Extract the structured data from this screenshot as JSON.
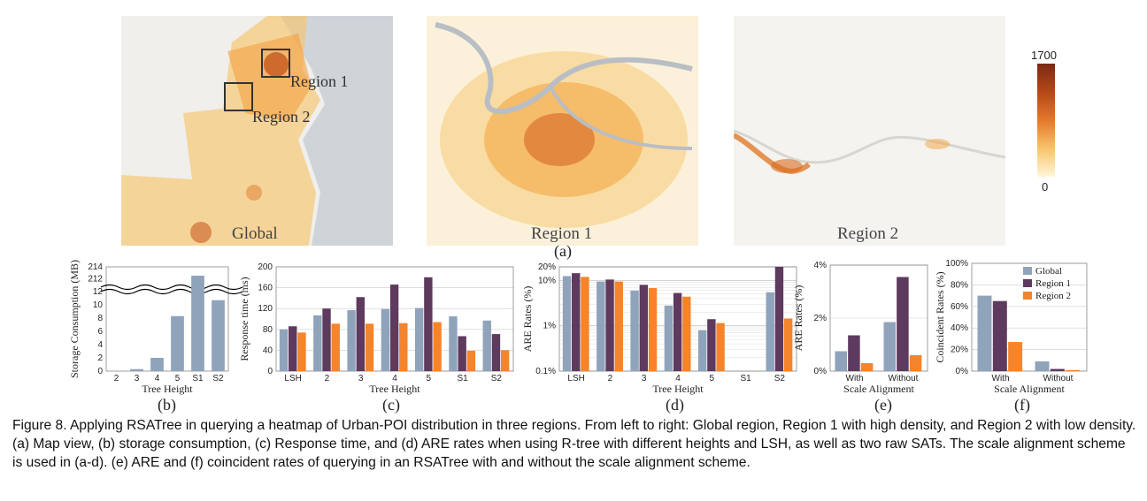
{
  "colors": {
    "global": "#8fa3bb",
    "region1": "#5d3a5e",
    "region2": "#f5842b",
    "heat_low": "#fff6d9",
    "heat_mid": "#f6a33d",
    "heat_high": "#b5471a",
    "land": "#f0efec",
    "water": "#cfd4d9"
  },
  "maps": {
    "global_label": "Global",
    "region1_label": "Region 1",
    "region2_label": "Region 2",
    "box1_label": "Region 1",
    "box2_label": "Region 2",
    "colorbar_max": "1700",
    "colorbar_min": "0",
    "panel_label": "(a)"
  },
  "panel_labels": {
    "b": "(b)",
    "c": "(c)",
    "d": "(d)",
    "e": "(e)",
    "f": "(f)"
  },
  "legend": {
    "items": [
      "Global",
      "Region 1",
      "Region 2"
    ]
  },
  "chart_data": [
    {
      "id": "b",
      "type": "bar",
      "xlabel": "Tree Height",
      "ylabel": "Storage Consumption (MB)",
      "categories": [
        "2",
        "3",
        "4",
        "5",
        "S1",
        "S2"
      ],
      "values": [
        0.05,
        0.3,
        2.0,
        8.3,
        212.5,
        10.7
      ],
      "yticks_lower": [
        "0",
        "2",
        "4",
        "6",
        "8",
        "10",
        "12"
      ],
      "yticks_upper": [
        "212",
        "214"
      ],
      "axis_break": true,
      "ylim_lower": [
        0,
        12
      ],
      "ylim_upper": [
        211,
        214
      ]
    },
    {
      "id": "c",
      "type": "bar",
      "xlabel": "Tree Height",
      "ylabel": "Response time (ms)",
      "categories": [
        "LSH",
        "2",
        "3",
        "4",
        "5",
        "S1",
        "S2"
      ],
      "yticks": [
        "0",
        "40",
        "80",
        "120",
        "160",
        "200"
      ],
      "ylim": [
        0,
        200
      ],
      "series": [
        {
          "name": "Global",
          "values": [
            80,
            107,
            117,
            119,
            121,
            105,
            97
          ]
        },
        {
          "name": "Region 1",
          "values": [
            86,
            120,
            142,
            166,
            180,
            67,
            71
          ]
        },
        {
          "name": "Region 2",
          "values": [
            74,
            91,
            91,
            92,
            94,
            39,
            40
          ]
        }
      ]
    },
    {
      "id": "d",
      "type": "bar",
      "yscale": "log",
      "xlabel": "Tree Height",
      "ylabel": "ARE Rates (%)",
      "categories": [
        "LSH",
        "2",
        "3",
        "4",
        "5",
        "S1",
        "S2"
      ],
      "yticks": [
        "0.1%",
        "1%",
        "10%",
        "20%"
      ],
      "ylim": [
        0.1,
        20
      ],
      "series": [
        {
          "name": "Global",
          "values": [
            12.5,
            9.5,
            6.0,
            2.8,
            0.8,
            0,
            5.5
          ]
        },
        {
          "name": "Region 1",
          "values": [
            14.5,
            10.5,
            8.0,
            5.3,
            1.4,
            0,
            20
          ]
        },
        {
          "name": "Region 2",
          "values": [
            12.0,
            9.5,
            6.8,
            4.4,
            1.15,
            0,
            1.45
          ]
        }
      ]
    },
    {
      "id": "e",
      "type": "bar",
      "xlabel": "Scale Alignment",
      "ylabel": "ARE Rates (%)",
      "categories": [
        "With",
        "Without"
      ],
      "yticks": [
        "0%",
        "2%",
        "4%"
      ],
      "ylim": [
        0,
        4
      ],
      "series": [
        {
          "name": "Global",
          "values": [
            0.75,
            1.85
          ]
        },
        {
          "name": "Region 1",
          "values": [
            1.35,
            3.55
          ]
        },
        {
          "name": "Region 2",
          "values": [
            0.3,
            0.6
          ]
        }
      ]
    },
    {
      "id": "f",
      "type": "bar",
      "xlabel": "Scale Alignment",
      "ylabel": "Coincident Rates (%)",
      "categories": [
        "With",
        "Without"
      ],
      "yticks": [
        "0%",
        "20%",
        "40%",
        "60%",
        "80%",
        "100%"
      ],
      "ylim": [
        0,
        100
      ],
      "series": [
        {
          "name": "Global",
          "values": [
            70,
            9
          ]
        },
        {
          "name": "Region 1",
          "values": [
            65,
            2
          ]
        },
        {
          "name": "Region 2",
          "values": [
            27,
            1
          ]
        }
      ]
    }
  ],
  "caption": "Figure 8. Applying RSATree in querying a heatmap of Urban-POI distribution in three regions. From left to right: Global region, Region 1 with high density, and Region 2 with low density. (a) Map view, (b) storage consumption, (c) Response time, and (d) ARE rates when using R-tree with different heights and LSH, as well as two raw SATs. The scale alignment scheme is used in (a-d). (e) ARE and (f) coincident rates of querying in an RSATree with and without the scale alignment scheme."
}
